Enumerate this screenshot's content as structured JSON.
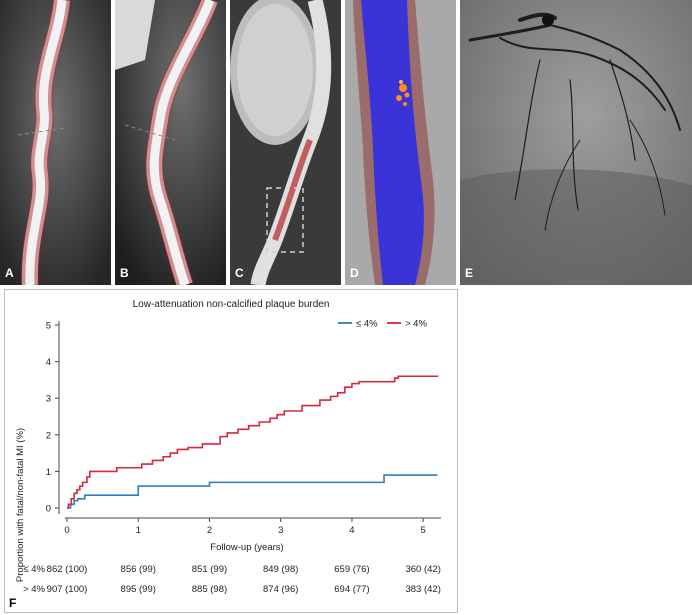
{
  "panels": {
    "a": {
      "letter": "A"
    },
    "b": {
      "letter": "B"
    },
    "c": {
      "letter": "C"
    },
    "d": {
      "letter": "D"
    },
    "e": {
      "letter": "E"
    },
    "f": {
      "letter": "F"
    }
  },
  "colors": {
    "series_low": "#2a7fc4",
    "series_high": "#d62839",
    "plaque_overlay": "#b3262b",
    "lumen_blue": "#3a33d8",
    "calcium_orange": "#ff8c1a"
  },
  "chart_data": {
    "type": "line",
    "title": "Low-attenuation non-calcified plaque burden",
    "xlabel": "Follow-up (years)",
    "ylabel": "Proportion with fatal/non-fatal MI (%)",
    "xlim": [
      0,
      5.25
    ],
    "ylim": [
      0,
      5
    ],
    "x_ticks": [
      0,
      1,
      2,
      3,
      4,
      5
    ],
    "y_ticks": [
      0,
      1,
      2,
      3,
      4,
      5
    ],
    "legend_position": "top-right",
    "series": [
      {
        "name": "≤ 4%",
        "color": "#2a7fc4",
        "x": [
          0,
          0.05,
          0.1,
          0.15,
          0.25,
          0.95,
          1.0,
          1.95,
          2.0,
          4.4,
          4.45,
          5.2
        ],
        "y": [
          0,
          0.1,
          0.2,
          0.25,
          0.35,
          0.35,
          0.6,
          0.6,
          0.7,
          0.7,
          0.9,
          0.9
        ]
      },
      {
        "name": "> 4%",
        "color": "#d62839",
        "x": [
          0,
          0.02,
          0.06,
          0.1,
          0.14,
          0.18,
          0.22,
          0.28,
          0.32,
          0.7,
          1.05,
          1.2,
          1.35,
          1.45,
          1.55,
          1.7,
          1.9,
          2.15,
          2.25,
          2.4,
          2.55,
          2.7,
          2.85,
          2.95,
          3.05,
          3.3,
          3.55,
          3.7,
          3.8,
          3.9,
          4.0,
          4.1,
          4.6,
          4.65,
          5.2
        ],
        "y": [
          0,
          0.1,
          0.25,
          0.4,
          0.5,
          0.6,
          0.7,
          0.85,
          1.0,
          1.1,
          1.2,
          1.3,
          1.4,
          1.5,
          1.6,
          1.65,
          1.75,
          1.95,
          2.05,
          2.15,
          2.25,
          2.35,
          2.45,
          2.55,
          2.65,
          2.8,
          2.95,
          3.05,
          3.15,
          3.3,
          3.4,
          3.45,
          3.55,
          3.6,
          3.62
        ]
      }
    ],
    "risk_table": {
      "rows": [
        {
          "label": "≤ 4%",
          "values": [
            "862 (100)",
            "856 (99)",
            "851 (99)",
            "849 (98)",
            "659 (76)",
            "360 (42)"
          ]
        },
        {
          "label": "> 4%",
          "values": [
            "907 (100)",
            "895 (99)",
            "885 (98)",
            "874 (96)",
            "694 (77)",
            "383 (42)"
          ]
        }
      ]
    }
  }
}
